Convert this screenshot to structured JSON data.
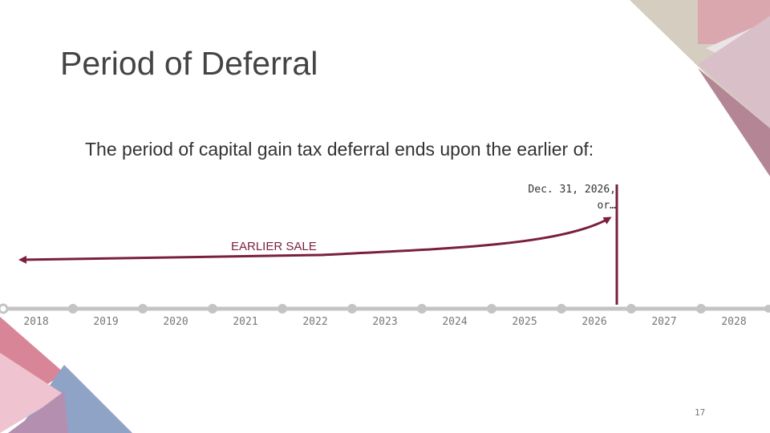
{
  "slide": {
    "title": "Period of Deferral",
    "subtitle": "The period of capital gain tax deferral ends upon the earlier of:",
    "deadline_note_line1": "Dec. 31, 2026,",
    "deadline_note_line2": "or…",
    "earlier_sale_label": "EARLIER SALE",
    "page_number": "17"
  },
  "timeline": {
    "years": [
      "2018",
      "2019",
      "2020",
      "2021",
      "2022",
      "2023",
      "2024",
      "2025",
      "2026",
      "2027",
      "2028"
    ],
    "deadline_year": 2026
  },
  "colors": {
    "accent": "#7a1f3d",
    "timeline": "#c4c4c4",
    "text": "#444444"
  }
}
